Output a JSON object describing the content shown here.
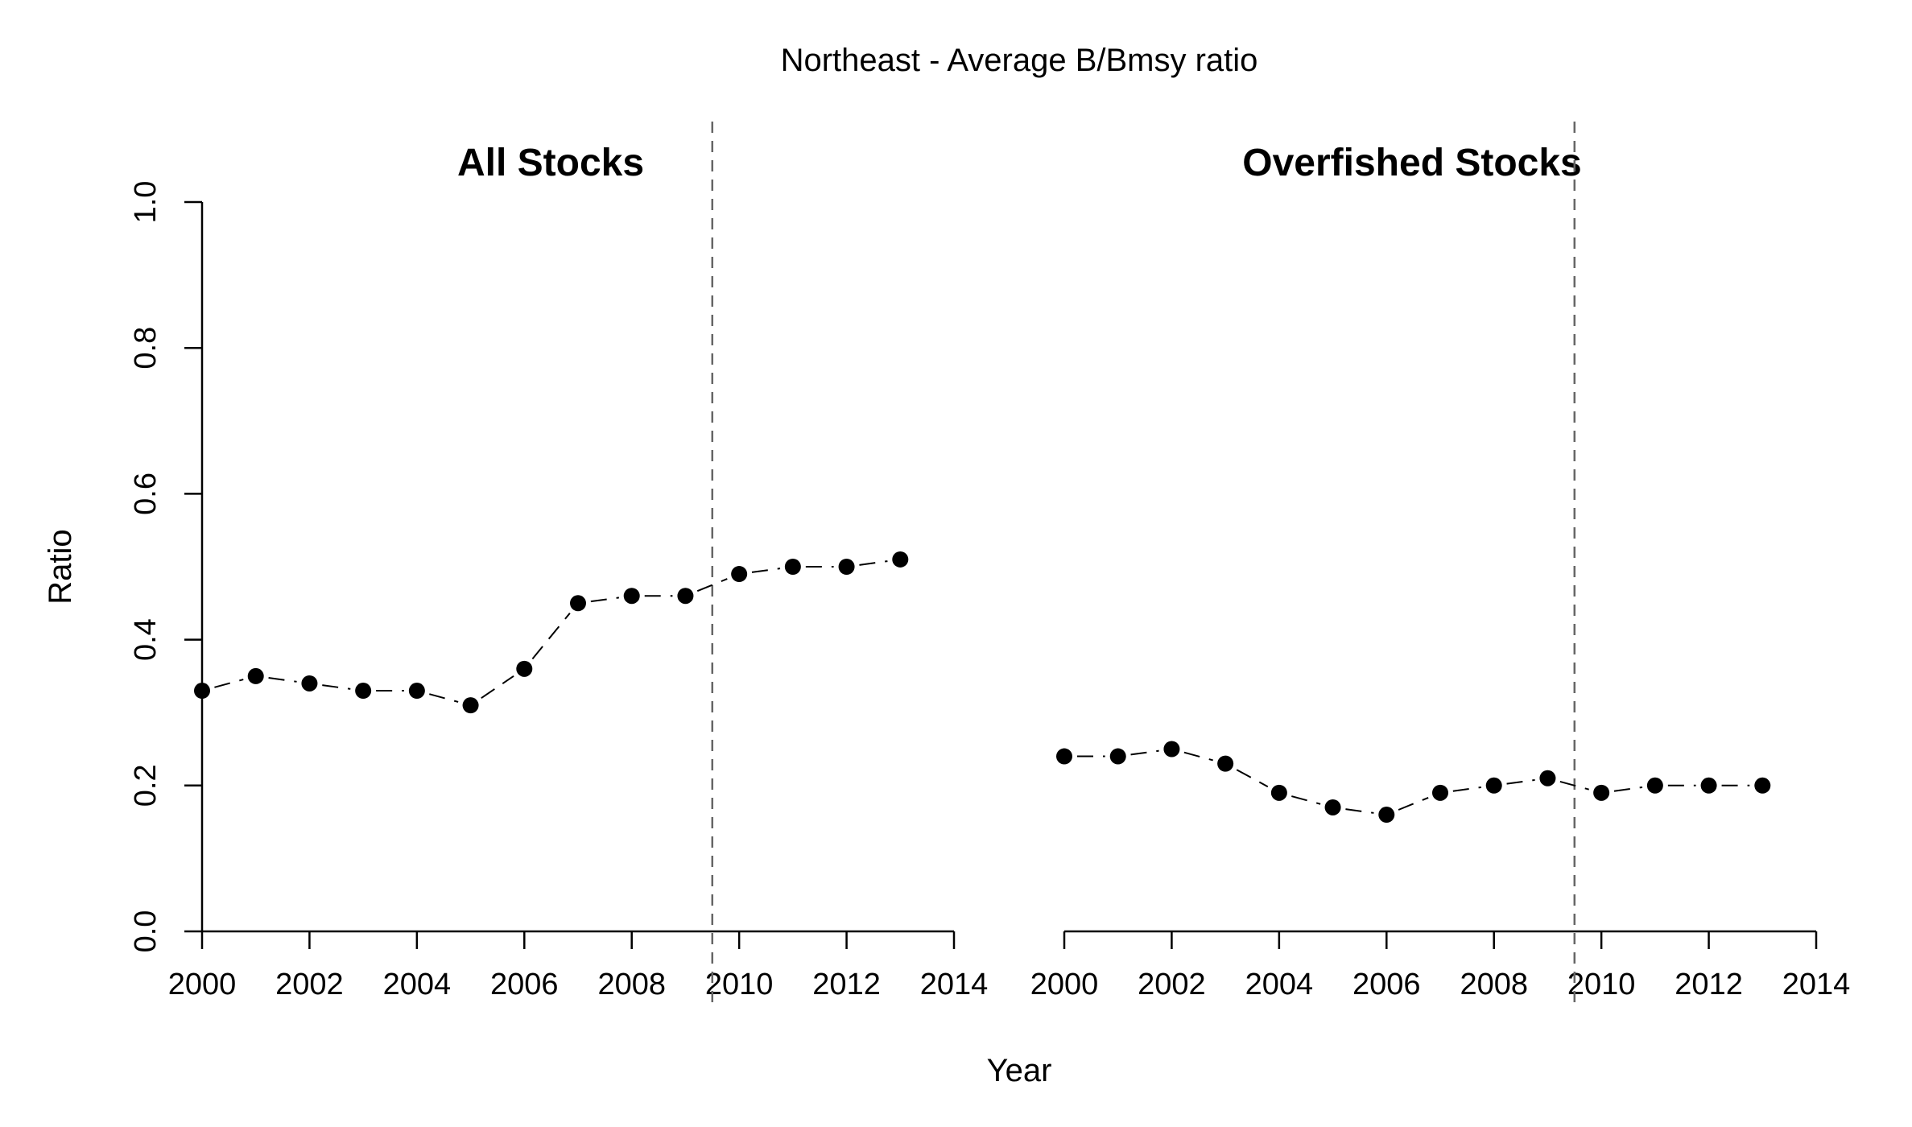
{
  "title": "Northeast - Average B/Bmsy ratio",
  "xlabel": "Year",
  "ylabel": "Ratio",
  "colors": {
    "points": "#000000",
    "line": "#000000",
    "reference_line": "#666666"
  },
  "chart_data": [
    {
      "type": "line",
      "title": "All Stocks",
      "x": [
        2000,
        2001,
        2002,
        2003,
        2004,
        2005,
        2006,
        2007,
        2008,
        2009,
        2010,
        2011,
        2012,
        2013
      ],
      "series": [
        {
          "values": [
            0.33,
            0.35,
            0.34,
            0.33,
            0.33,
            0.31,
            0.36,
            0.45,
            0.46,
            0.46,
            0.49,
            0.5,
            0.5,
            0.51
          ]
        }
      ],
      "xlim": [
        2000,
        2014
      ],
      "ylim": [
        0,
        1
      ],
      "xticks": [
        "2000",
        "2002",
        "2004",
        "2006",
        "2008",
        "2010",
        "2012",
        "2014"
      ],
      "yticks": [
        "0.0",
        "0.2",
        "0.4",
        "0.6",
        "0.8",
        "1.0"
      ],
      "reference_line_x": 2009.5,
      "line_style": "dashed",
      "marker": "filled-circle",
      "grid": false
    },
    {
      "type": "line",
      "title": "Overfished Stocks",
      "x": [
        2000,
        2001,
        2002,
        2003,
        2004,
        2005,
        2006,
        2007,
        2008,
        2009,
        2010,
        2011,
        2012,
        2013
      ],
      "series": [
        {
          "values": [
            0.24,
            0.24,
            0.25,
            0.23,
            0.19,
            0.17,
            0.16,
            0.19,
            0.2,
            0.21,
            0.19,
            0.2,
            0.2,
            0.2
          ]
        }
      ],
      "xlim": [
        2000,
        2014
      ],
      "ylim": [
        0,
        1
      ],
      "xticks": [
        "2000",
        "2002",
        "2004",
        "2006",
        "2008",
        "2010",
        "2012",
        "2014"
      ],
      "yticks": [],
      "reference_line_x": 2009.5,
      "line_style": "dashed",
      "marker": "filled-circle",
      "grid": false
    }
  ]
}
